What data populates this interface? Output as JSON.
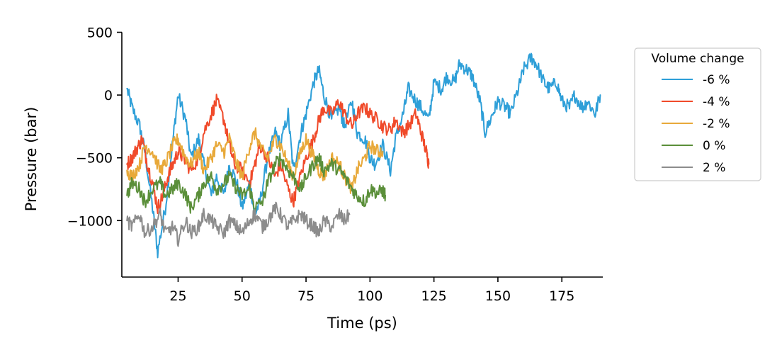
{
  "chart_data": {
    "type": "line",
    "title": "",
    "xlabel": "Time (ps)",
    "ylabel": "Pressure (bar)",
    "xlim": [
      3,
      191
    ],
    "ylim": [
      -1450,
      520
    ],
    "xticks": [
      25,
      50,
      75,
      100,
      125,
      150,
      175
    ],
    "xtick_labels": [
      "25",
      "50",
      "75",
      "100",
      "125",
      "150",
      "175"
    ],
    "yticks": [
      500,
      0,
      -500,
      -1000
    ],
    "ytick_labels": [
      "500",
      "0",
      "−500",
      "−1000"
    ],
    "grid": false,
    "legend": {
      "title": "Volume change",
      "position": "outside-right"
    },
    "series": [
      {
        "name": "-6 %",
        "color": "#2e9fd8",
        "x": [
          5,
          7,
          10,
          12,
          15,
          17,
          20,
          23,
          25,
          28,
          30,
          33,
          35,
          38,
          40,
          43,
          45,
          48,
          50,
          53,
          55,
          57,
          60,
          63,
          65,
          68,
          70,
          73,
          75,
          78,
          80,
          82,
          85,
          88,
          90,
          93,
          95,
          98,
          100,
          102,
          105,
          108,
          110,
          113,
          115,
          118,
          120,
          123,
          125,
          128,
          130,
          133,
          135,
          138,
          140,
          143,
          145,
          148,
          150,
          153,
          155,
          158,
          160,
          163,
          165,
          168,
          170,
          173,
          175,
          178,
          180,
          183,
          185,
          188,
          190
        ],
        "values": [
          50,
          -100,
          -250,
          -450,
          -900,
          -1250,
          -900,
          -350,
          0,
          -200,
          -500,
          -350,
          -550,
          -800,
          -650,
          -800,
          -550,
          -700,
          -900,
          -700,
          -950,
          -850,
          -500,
          -300,
          -400,
          -150,
          -600,
          -300,
          -150,
          100,
          200,
          0,
          -200,
          -100,
          -250,
          -50,
          -300,
          -350,
          -500,
          -550,
          -400,
          -600,
          -350,
          -150,
          50,
          -50,
          -100,
          -200,
          100,
          50,
          150,
          100,
          250,
          200,
          150,
          -50,
          -300,
          -150,
          -50,
          -100,
          -150,
          50,
          200,
          300,
          250,
          100,
          50,
          100,
          -50,
          -100,
          0,
          -100,
          -50,
          -150,
          0
        ]
      },
      {
        "name": "-4 %",
        "color": "#f04a2a",
        "x": [
          5,
          7,
          9,
          11,
          13,
          15,
          17,
          19,
          21,
          23,
          25,
          27,
          30,
          33,
          35,
          38,
          40,
          43,
          45,
          47,
          50,
          53,
          55,
          57,
          60,
          63,
          65,
          68,
          70,
          72,
          75,
          78,
          80,
          82,
          85,
          88,
          90,
          93,
          95,
          98,
          100,
          103,
          105,
          108,
          110,
          113,
          115,
          118,
          120,
          122,
          123
        ],
        "values": [
          -550,
          -500,
          -420,
          -350,
          -550,
          -700,
          -900,
          -800,
          -650,
          -550,
          -450,
          -500,
          -600,
          -500,
          -300,
          -150,
          -50,
          -200,
          -400,
          -550,
          -600,
          -700,
          -550,
          -400,
          -500,
          -650,
          -550,
          -750,
          -850,
          -700,
          -500,
          -350,
          -200,
          -100,
          -150,
          -50,
          -150,
          -250,
          -150,
          -100,
          -150,
          -200,
          -250,
          -280,
          -200,
          -300,
          -250,
          -150,
          -300,
          -450,
          -550
        ]
      },
      {
        "name": "-2 %",
        "color": "#e8a93a",
        "x": [
          5,
          7,
          10,
          12,
          15,
          18,
          20,
          23,
          25,
          28,
          30,
          33,
          35,
          38,
          40,
          43,
          45,
          48,
          50,
          53,
          55,
          58,
          60,
          63,
          65,
          68,
          70,
          73,
          75,
          78,
          80,
          82,
          85,
          88,
          90,
          93,
          95,
          98,
          100,
          103,
          105
        ],
        "values": [
          -600,
          -650,
          -550,
          -400,
          -450,
          -600,
          -550,
          -400,
          -350,
          -500,
          -550,
          -450,
          -600,
          -500,
          -400,
          -450,
          -350,
          -550,
          -650,
          -400,
          -300,
          -450,
          -500,
          -350,
          -400,
          -550,
          -650,
          -450,
          -350,
          -500,
          -600,
          -650,
          -500,
          -550,
          -650,
          -750,
          -600,
          -500,
          -400,
          -450,
          -450
        ]
      },
      {
        "name": "0 %",
        "color": "#5b8f3a",
        "x": [
          5,
          7,
          10,
          12,
          15,
          18,
          20,
          23,
          25,
          28,
          30,
          33,
          35,
          38,
          40,
          43,
          45,
          48,
          50,
          53,
          55,
          58,
          60,
          63,
          65,
          68,
          70,
          73,
          75,
          78,
          80,
          82,
          85,
          88,
          90,
          93,
          95,
          98,
          100,
          103,
          105,
          106
        ],
        "values": [
          -800,
          -700,
          -750,
          -850,
          -750,
          -700,
          -800,
          -750,
          -700,
          -800,
          -900,
          -800,
          -700,
          -650,
          -750,
          -700,
          -650,
          -750,
          -800,
          -750,
          -900,
          -850,
          -700,
          -550,
          -500,
          -600,
          -650,
          -750,
          -650,
          -550,
          -500,
          -600,
          -550,
          -600,
          -650,
          -750,
          -800,
          -850,
          -750,
          -780,
          -760,
          -800
        ]
      },
      {
        "name": "2 %",
        "color": "#8c8c8c",
        "x": [
          5,
          7,
          10,
          12,
          15,
          18,
          20,
          23,
          25,
          28,
          30,
          33,
          35,
          38,
          40,
          43,
          45,
          48,
          50,
          53,
          55,
          58,
          60,
          63,
          65,
          68,
          70,
          73,
          75,
          78,
          80,
          82,
          85,
          88,
          90,
          92
        ],
        "values": [
          -1000,
          -1050,
          -950,
          -1100,
          -1050,
          -950,
          -1100,
          -1050,
          -1150,
          -1000,
          -1100,
          -1050,
          -950,
          -1000,
          -1050,
          -1100,
          -1000,
          -1050,
          -1100,
          -1000,
          -950,
          -1050,
          -1000,
          -900,
          -950,
          -1050,
          -1000,
          -950,
          -1000,
          -1050,
          -1100,
          -1000,
          -1050,
          -950,
          -1000,
          -950
        ]
      }
    ]
  }
}
